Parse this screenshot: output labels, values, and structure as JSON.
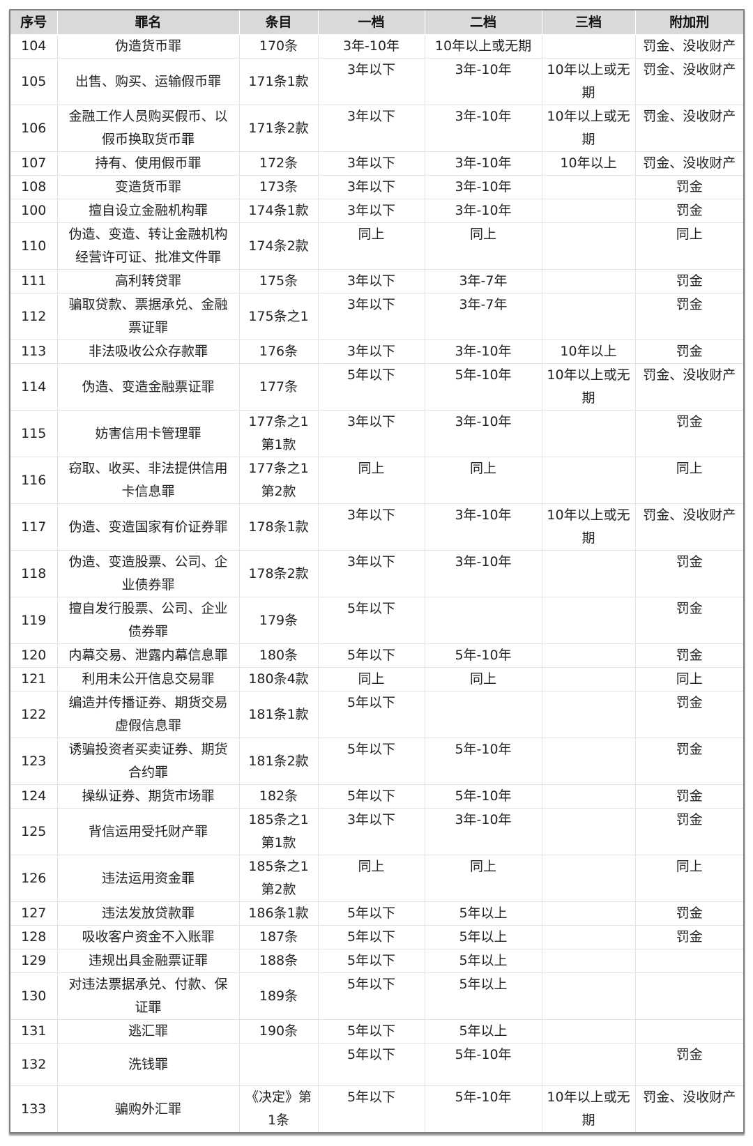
{
  "headers": [
    "序号",
    "罪名",
    "条目",
    "一档",
    "二档",
    "三档",
    "附加刑"
  ],
  "rows": [
    [
      "104",
      "伪造货币罪",
      "170条",
      "3年-10年",
      "10年以上或无期",
      "",
      "罚金、没收财产"
    ],
    [
      "105",
      "出售、购买、运输假币罪",
      "171条1款",
      "3年以下",
      "3年-10年",
      "10年以上或无\n期",
      "罚金、没收财产"
    ],
    [
      "106",
      "金融工作人员购买假币、以\n假币换取货币罪",
      "171条2款",
      "3年以下",
      "3年-10年",
      "10年以上或无\n期",
      "罚金、没收财产"
    ],
    [
      "107",
      "持有、使用假币罪",
      "172条",
      "3年以下",
      "3年-10年",
      "10年以上",
      "罚金、没收财产"
    ],
    [
      "108",
      "变造货币罪",
      "173条",
      "3年以下",
      "3年-10年",
      "",
      "罚金"
    ],
    [
      "100",
      "擅自设立金融机构罪",
      "174条1款",
      "3年以下",
      "3年-10年",
      "",
      "罚金"
    ],
    [
      "110",
      "伪造、变造、转让金融机构\n经营许可证、批准文件罪",
      "174条2款",
      "同上",
      "同上",
      "",
      "同上"
    ],
    [
      "111",
      "高利转贷罪",
      "175条",
      "3年以下",
      "3年-7年",
      "",
      "罚金"
    ],
    [
      "112",
      "骗取贷款、票据承兑、金融\n票证罪",
      "175条之1",
      "3年以下",
      "3年-7年",
      "",
      "罚金"
    ],
    [
      "113",
      "非法吸收公众存款罪",
      "176条",
      "3年以下",
      "3年-10年",
      "10年以上",
      "罚金"
    ],
    [
      "114",
      "伪造、变造金融票证罪",
      "177条",
      "5年以下",
      "5年-10年",
      "10年以上或无\n期",
      "罚金、没收财产"
    ],
    [
      "115",
      "妨害信用卡管理罪",
      "177条之1\n第1款",
      "3年以下",
      "3年-10年",
      "",
      "罚金"
    ],
    [
      "116",
      "窃取、收买、非法提供信用\n卡信息罪",
      "177条之1\n第2款",
      "同上",
      "同上",
      "",
      "同上"
    ],
    [
      "117",
      "伪造、变造国家有价证券罪",
      "178条1款",
      "3年以下",
      "3年-10年",
      "10年以上或无\n期",
      "罚金、没收财产"
    ],
    [
      "118",
      "伪造、变造股票、公司、企\n业债券罪",
      "178条2款",
      "3年以下",
      "3年-10年",
      "",
      "罚金"
    ],
    [
      "119",
      "擅自发行股票、公司、企业\n债券罪",
      "179条",
      "5年以下",
      "",
      "",
      "罚金"
    ],
    [
      "120",
      "内幕交易、泄露内幕信息罪",
      "180条",
      "5年以下",
      "5年-10年",
      "",
      "罚金"
    ],
    [
      "121",
      "利用未公开信息交易罪",
      "180条4款",
      "同上",
      "同上",
      "",
      "同上"
    ],
    [
      "122",
      "编造并传播证券、期货交易\n虚假信息罪",
      "181条1款",
      "5年以下",
      "",
      "",
      "罚金"
    ],
    [
      "123",
      "诱骗投资者买卖证券、期货\n合约罪",
      "181条2款",
      "5年以下",
      "5年-10年",
      "",
      "罚金"
    ],
    [
      "124",
      "操纵证券、期货市场罪",
      "182条",
      "5年以下",
      "5年-10年",
      "",
      "罚金"
    ],
    [
      "125",
      "背信运用受托财产罪",
      "185条之1\n第1款",
      "3年以下",
      "3年-10年",
      "",
      "罚金"
    ],
    [
      "126",
      "违法运用资金罪",
      "185条之1\n第2款",
      "同上",
      "同上",
      "",
      "同上"
    ],
    [
      "127",
      "违法发放贷款罪",
      "186条1款",
      "5年以下",
      "5年以上",
      "",
      "罚金"
    ],
    [
      "128",
      "吸收客户资金不入账罪",
      "187条",
      "5年以下",
      "5年以上",
      "",
      "罚金"
    ],
    [
      "129",
      "违规出具金融票证罪",
      "188条",
      "5年以下",
      "5年以上",
      "",
      ""
    ],
    [
      "130",
      "对违法票据承兑、付款、保\n证罪",
      "189条",
      "5年以下",
      "5年以上",
      "",
      ""
    ],
    [
      "131",
      "逃汇罪",
      "190条",
      "5年以下",
      "5年以上",
      "",
      ""
    ],
    [
      "132",
      "洗钱罪",
      "",
      "5年以下",
      "5年-10年",
      "",
      "罚金"
    ],
    [
      "133",
      "骗购外汇罪",
      "《决定》第\n1条",
      "5年以下",
      "5年-10年",
      "10年以上或无\n期",
      "罚金、没收财产"
    ]
  ]
}
